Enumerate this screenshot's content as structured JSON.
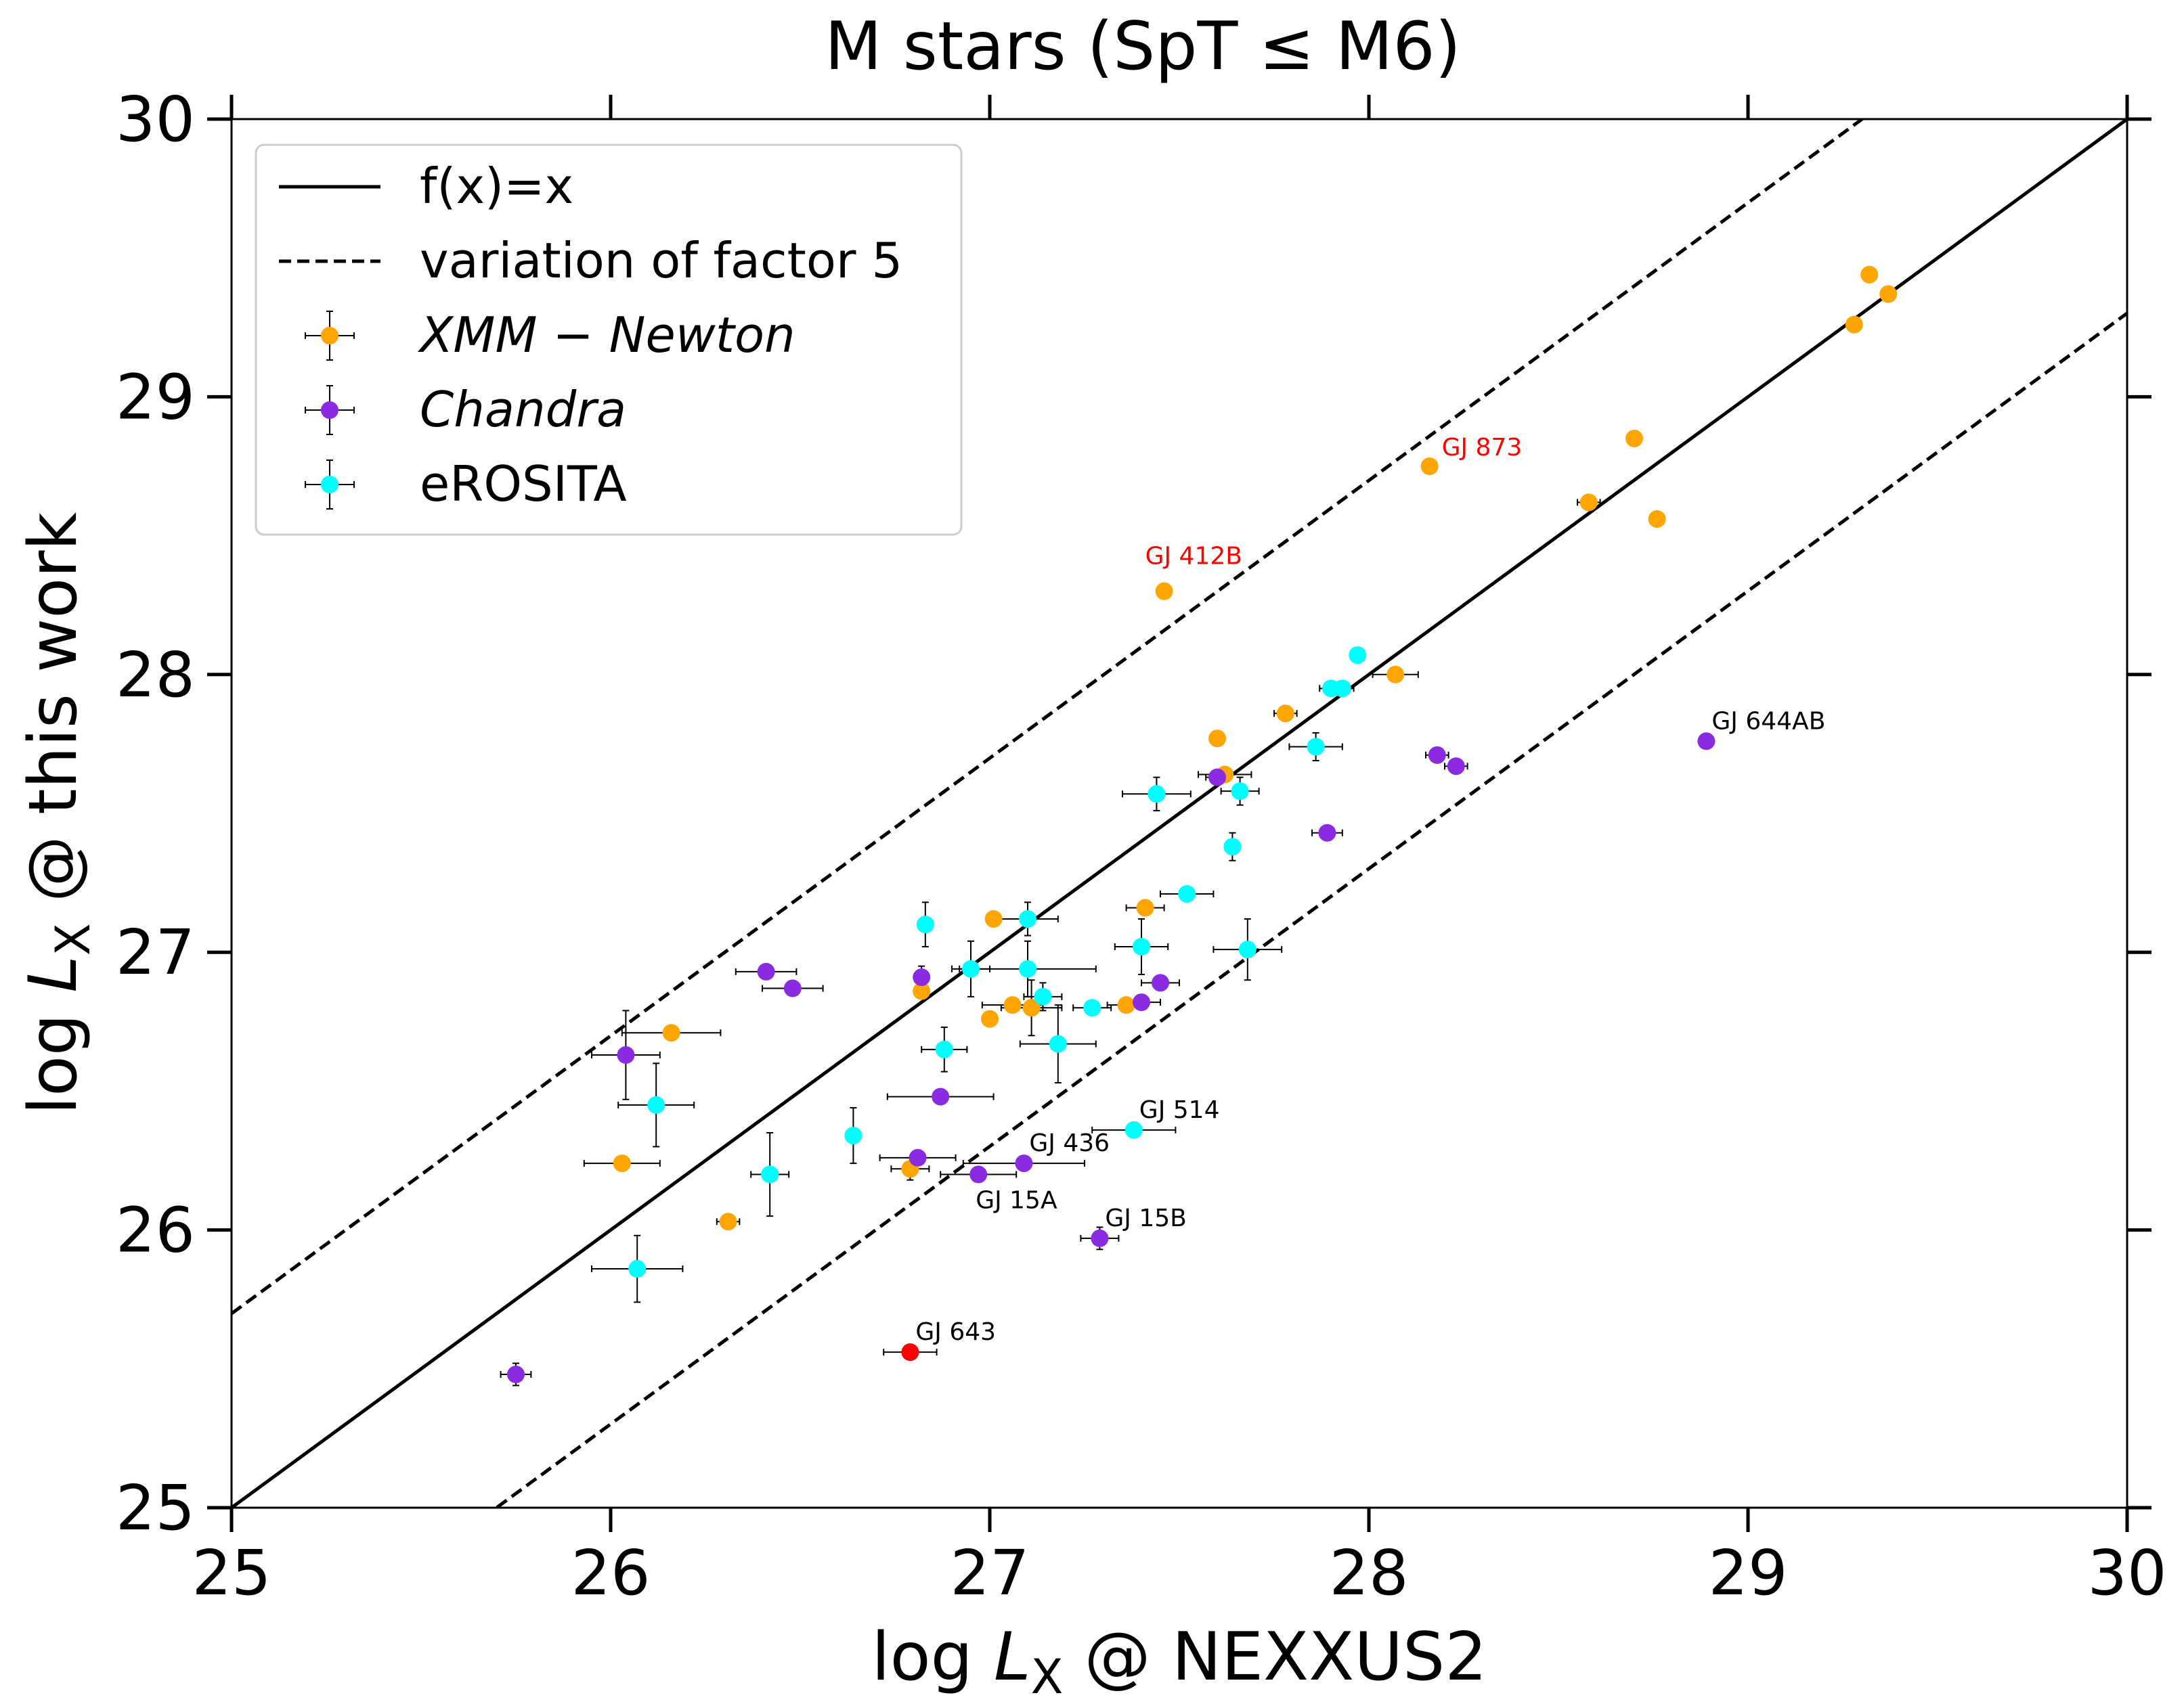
{
  "chart_data": {
    "type": "scatter",
    "title": "M stars (SpT ≤ M6)",
    "xlabel": {
      "pre": "log ",
      "var": "L",
      "sub": "X",
      "post": " @ NEXXUS2"
    },
    "ylabel": {
      "pre": "log ",
      "var": "L",
      "sub": "X",
      "post": " @ this work"
    },
    "xlim": [
      25,
      30
    ],
    "ylim": [
      25,
      30
    ],
    "xticks": [
      25,
      26,
      27,
      28,
      29,
      30
    ],
    "yticks": [
      25,
      26,
      27,
      28,
      29,
      30
    ],
    "legend_position": "top-left",
    "legend": [
      {
        "kind": "line",
        "style": "solid",
        "label": "f(x)=x",
        "italic": false
      },
      {
        "kind": "line",
        "style": "dashed",
        "label": "variation of factor 5",
        "italic": false
      },
      {
        "kind": "marker",
        "color": "#FFA500",
        "label": "XMM − Newton",
        "italic": true
      },
      {
        "kind": "marker",
        "color": "#8A2BE2",
        "label": "Chandra",
        "italic": true
      },
      {
        "kind": "marker",
        "color": "#00FFFF",
        "label": "eROSITA",
        "italic": false
      }
    ],
    "lines": [
      {
        "name": "f(x)=x",
        "offset": 0,
        "style": "solid"
      },
      {
        "name": "variation of factor 5 (upper)",
        "offset": 0.699,
        "style": "dashed"
      },
      {
        "name": "variation of factor 5 (lower)",
        "offset": -0.699,
        "style": "dashed"
      }
    ],
    "series": [
      {
        "name": "XMM − Newton",
        "color": "#FFA500",
        "points": [
          {
            "x": 29.32,
            "y": 29.44
          },
          {
            "x": 29.37,
            "y": 29.37
          },
          {
            "x": 29.28,
            "y": 29.26
          },
          {
            "x": 28.7,
            "y": 28.85
          },
          {
            "x": 28.58,
            "y": 28.62,
            "xerr": 0.03
          },
          {
            "x": 28.76,
            "y": 28.56
          },
          {
            "x": 28.16,
            "y": 28.75,
            "label": "GJ 873",
            "label_color": "#FF0000"
          },
          {
            "x": 27.46,
            "y": 28.3,
            "label": "GJ 412B",
            "label_color": "#FF0000"
          },
          {
            "x": 28.07,
            "y": 28.0,
            "xerr": 0.06
          },
          {
            "x": 27.78,
            "y": 27.86,
            "xerr": 0.03
          },
          {
            "x": 27.6,
            "y": 27.77
          },
          {
            "x": 27.62,
            "y": 27.64,
            "xerr": 0.07
          },
          {
            "x": 27.01,
            "y": 27.12
          },
          {
            "x": 27.41,
            "y": 27.16,
            "xerr": 0.05
          },
          {
            "x": 26.82,
            "y": 26.86
          },
          {
            "x": 27.06,
            "y": 26.81,
            "xerr": 0.08
          },
          {
            "x": 27.11,
            "y": 26.8,
            "xerr": 0.08,
            "yerr": 0.1
          },
          {
            "x": 27.36,
            "y": 26.81,
            "xerr": 0.05
          },
          {
            "x": 27.0,
            "y": 26.76
          },
          {
            "x": 26.16,
            "y": 26.71,
            "xerr": 0.13
          },
          {
            "x": 26.03,
            "y": 26.24,
            "xerr": 0.1
          },
          {
            "x": 26.79,
            "y": 26.22,
            "xerr": 0.05,
            "yerr": 0.04
          },
          {
            "x": 26.31,
            "y": 26.03,
            "xerr": 0.03
          }
        ]
      },
      {
        "name": "Chandra",
        "color": "#8A2BE2",
        "points": [
          {
            "x": 28.89,
            "y": 27.76,
            "label": "GJ 644AB",
            "label_color": "#000000"
          },
          {
            "x": 28.18,
            "y": 27.71,
            "xerr": 0.03
          },
          {
            "x": 28.23,
            "y": 27.67,
            "xerr": 0.03
          },
          {
            "x": 27.6,
            "y": 27.63,
            "xerr": 0.03
          },
          {
            "x": 27.89,
            "y": 27.43,
            "xerr": 0.04
          },
          {
            "x": 26.41,
            "y": 26.93,
            "xerr": 0.08
          },
          {
            "x": 26.48,
            "y": 26.87,
            "xerr": 0.08
          },
          {
            "x": 26.82,
            "y": 26.91,
            "yerr": 0.04
          },
          {
            "x": 27.45,
            "y": 26.89,
            "xerr": 0.05
          },
          {
            "x": 27.4,
            "y": 26.82,
            "xerr": 0.05
          },
          {
            "x": 26.04,
            "y": 26.63,
            "xerr": 0.09,
            "yerr": 0.16
          },
          {
            "x": 26.87,
            "y": 26.48,
            "xerr": 0.14
          },
          {
            "x": 26.81,
            "y": 26.26,
            "xerr": 0.1
          },
          {
            "x": 26.97,
            "y": 26.2,
            "xerr": 0.1,
            "label": "GJ 15A",
            "label_color": "#000000"
          },
          {
            "x": 27.09,
            "y": 26.24,
            "xerr": 0.16,
            "label": "GJ 436",
            "label_color": "#000000"
          },
          {
            "x": 27.29,
            "y": 25.97,
            "xerr": 0.05,
            "yerr": 0.04,
            "label": "GJ 15B",
            "label_color": "#000000"
          },
          {
            "x": 25.75,
            "y": 25.48,
            "xerr": 0.04,
            "yerr": 0.04
          }
        ]
      },
      {
        "name": "eROSITA",
        "color": "#00FFFF",
        "points": [
          {
            "x": 27.97,
            "y": 28.07
          },
          {
            "x": 27.9,
            "y": 27.95,
            "xerr": 0.03
          },
          {
            "x": 27.93,
            "y": 27.95,
            "xerr": 0.03
          },
          {
            "x": 27.86,
            "y": 27.74,
            "xerr": 0.07,
            "yerr": 0.05
          },
          {
            "x": 27.44,
            "y": 27.57,
            "xerr": 0.09,
            "yerr": 0.06
          },
          {
            "x": 27.66,
            "y": 27.58,
            "xerr": 0.05,
            "yerr": 0.05
          },
          {
            "x": 27.64,
            "y": 27.38,
            "yerr": 0.05
          },
          {
            "x": 27.52,
            "y": 27.21,
            "xerr": 0.07
          },
          {
            "x": 27.1,
            "y": 27.12,
            "xerr": 0.08,
            "yerr": 0.06
          },
          {
            "x": 26.83,
            "y": 27.1,
            "yerr": 0.08
          },
          {
            "x": 27.4,
            "y": 27.02,
            "xerr": 0.07,
            "yerr": 0.1
          },
          {
            "x": 27.68,
            "y": 27.01,
            "xerr": 0.09,
            "yerr": 0.11
          },
          {
            "x": 26.95,
            "y": 26.94,
            "xerr": 0.05,
            "yerr": 0.1
          },
          {
            "x": 27.1,
            "y": 26.94,
            "xerr": 0.18,
            "yerr": 0.1
          },
          {
            "x": 27.14,
            "y": 26.84,
            "xerr": 0.05,
            "yerr": 0.05
          },
          {
            "x": 27.27,
            "y": 26.8,
            "xerr": 0.05
          },
          {
            "x": 27.18,
            "y": 26.67,
            "xerr": 0.1,
            "yerr": 0.14
          },
          {
            "x": 26.88,
            "y": 26.65,
            "xerr": 0.06,
            "yerr": 0.08
          },
          {
            "x": 26.12,
            "y": 26.45,
            "xerr": 0.1,
            "yerr": 0.15
          },
          {
            "x": 26.64,
            "y": 26.34,
            "yerr": 0.1
          },
          {
            "x": 27.38,
            "y": 26.36,
            "xerr": 0.11,
            "label": "GJ 514",
            "label_color": "#000000"
          },
          {
            "x": 26.42,
            "y": 26.2,
            "xerr": 0.05,
            "yerr": 0.15
          },
          {
            "x": 26.07,
            "y": 25.86,
            "xerr": 0.12,
            "yerr": 0.12
          }
        ]
      },
      {
        "name": "GJ 643",
        "color": "#FF0000",
        "points": [
          {
            "x": 26.79,
            "y": 25.56,
            "xerr": 0.07,
            "label": "GJ 643",
            "label_color": "#000000"
          }
        ]
      }
    ]
  }
}
